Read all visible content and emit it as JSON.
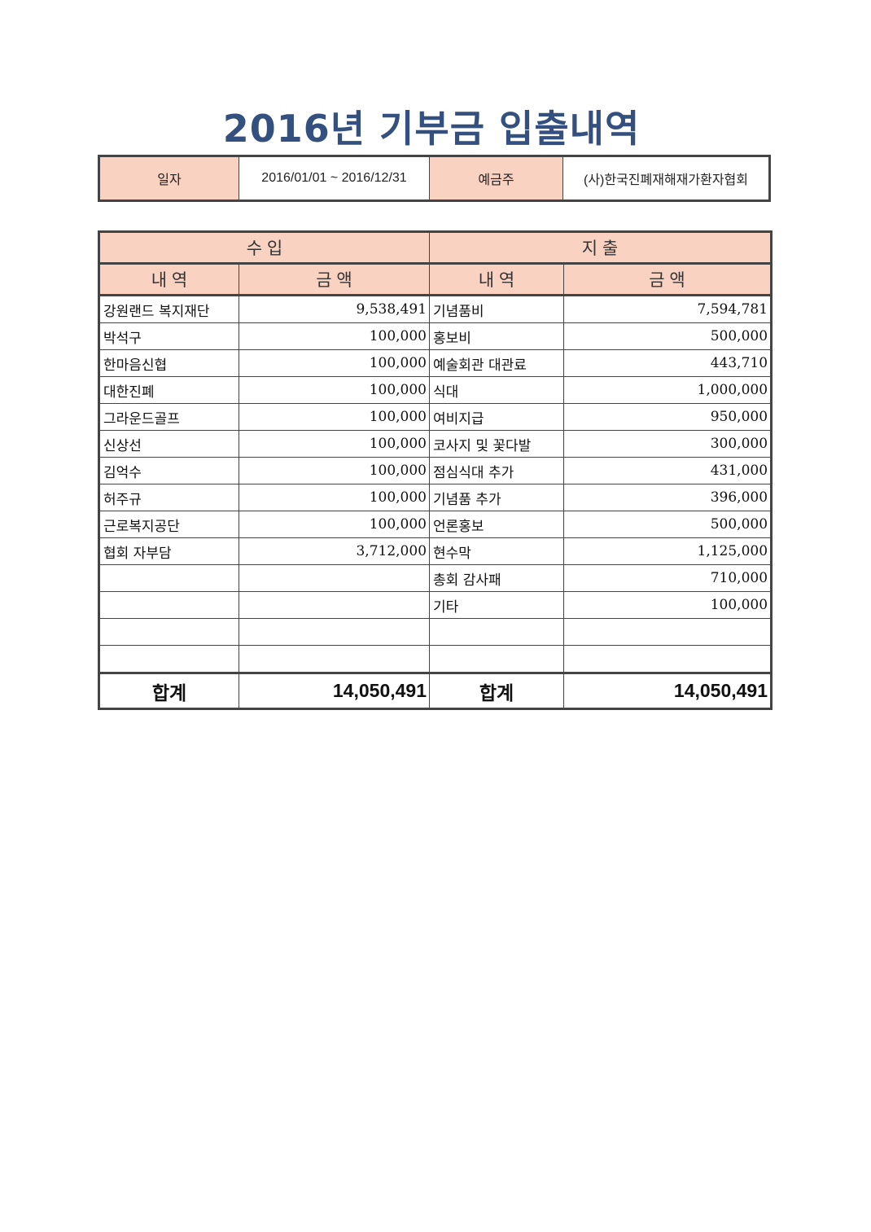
{
  "title": "2016년 기부금 입출내역",
  "info": {
    "date_label": "일자",
    "date_value": "2016/01/01 ~ 2016/12/31",
    "holder_label": "예금주",
    "holder_value": "(사)한국진폐재해재가환자협회"
  },
  "headers": {
    "income": "수 입",
    "expense": "지 출",
    "item": "내 역",
    "amount": "금 액"
  },
  "colors": {
    "header_fill": "#f9d2c2",
    "title": "#34507e"
  },
  "income": [
    {
      "item": "강원랜드 복지재단",
      "amount": "9,538,491"
    },
    {
      "item": "박석구",
      "amount": "100,000"
    },
    {
      "item": "한마음신협",
      "amount": "100,000"
    },
    {
      "item": "대한진폐",
      "amount": "100,000"
    },
    {
      "item": "그라운드골프",
      "amount": "100,000"
    },
    {
      "item": "신상선",
      "amount": "100,000"
    },
    {
      "item": "김억수",
      "amount": "100,000"
    },
    {
      "item": "허주규",
      "amount": "100,000"
    },
    {
      "item": "근로복지공단",
      "amount": "100,000"
    },
    {
      "item": "협회 자부담",
      "amount": "3,712,000"
    }
  ],
  "expense": [
    {
      "item": "기념품비",
      "amount": "7,594,781"
    },
    {
      "item": "홍보비",
      "amount": "500,000"
    },
    {
      "item": "예술회관 대관료",
      "amount": "443,710"
    },
    {
      "item": "식대",
      "amount": "1,000,000"
    },
    {
      "item": "여비지급",
      "amount": "950,000"
    },
    {
      "item": "코사지 및 꽃다발",
      "amount": "300,000"
    },
    {
      "item": "점심식대 추가",
      "amount": "431,000"
    },
    {
      "item": "기념품 추가",
      "amount": "396,000"
    },
    {
      "item": "언론홍보",
      "amount": "500,000"
    },
    {
      "item": "현수막",
      "amount": "1,125,000"
    },
    {
      "item": "총회 감사패",
      "amount": "710,000"
    },
    {
      "item": "기타",
      "amount": "100,000"
    }
  ],
  "totals": {
    "label": "합계",
    "income_total": "14,050,491",
    "expense_total": "14,050,491"
  }
}
